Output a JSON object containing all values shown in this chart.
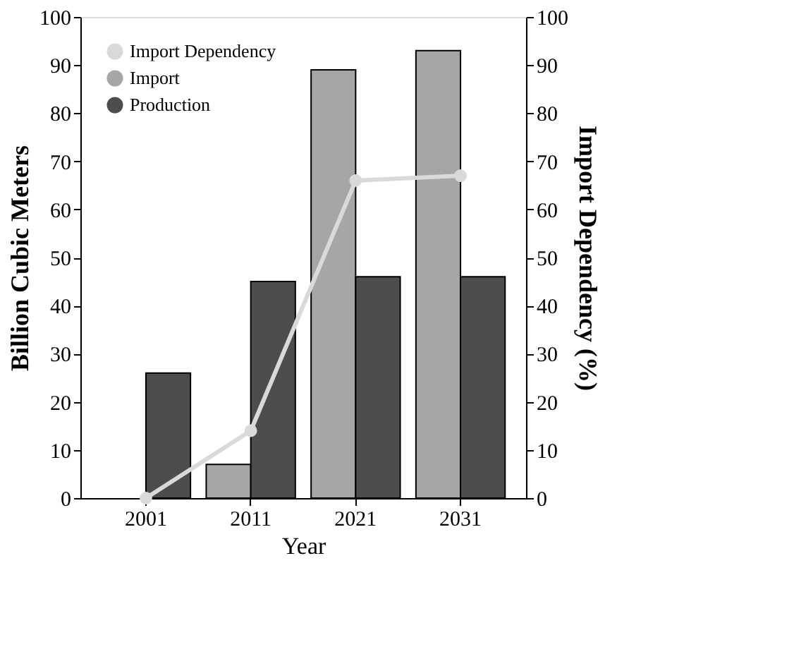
{
  "chart_data": {
    "type": "bar",
    "xlabel": "Year",
    "ylabel": "Billion Cubic Meters",
    "y2label": "Import Dependency (%)",
    "categories": [
      "2001",
      "2011",
      "2021",
      "2031"
    ],
    "series": [
      {
        "name": "Import Dependency",
        "type": "line",
        "axis": "y2",
        "color": "#d9d9d9",
        "marker": "circle",
        "values": [
          0,
          14,
          66,
          67
        ]
      },
      {
        "name": "Import",
        "color": "#a6a6a6",
        "values": [
          null,
          7,
          89,
          93
        ]
      },
      {
        "name": "Production",
        "color": "#4d4d4d",
        "values": [
          26,
          45,
          46,
          46
        ]
      }
    ],
    "ylim": [
      0,
      100
    ],
    "yticks": [
      0,
      10,
      20,
      30,
      40,
      50,
      60,
      70,
      80,
      90,
      100
    ],
    "y2lim": [
      0,
      100
    ],
    "y2ticks": [
      0,
      10,
      20,
      30,
      40,
      50,
      60,
      70,
      80,
      90,
      100
    ],
    "grid": false,
    "legend": "top left"
  }
}
